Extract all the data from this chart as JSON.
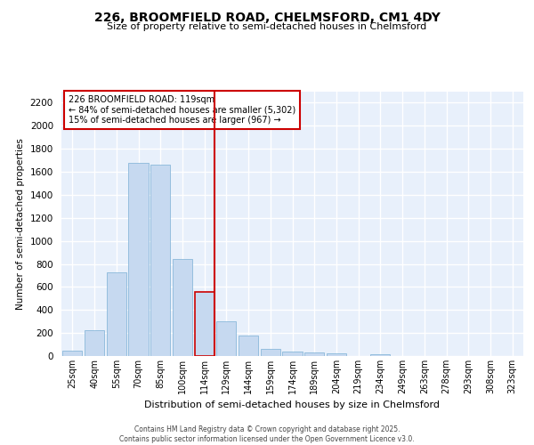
{
  "title_line1": "226, BROOMFIELD ROAD, CHELMSFORD, CM1 4DY",
  "title_line2": "Size of property relative to semi-detached houses in Chelmsford",
  "xlabel": "Distribution of semi-detached houses by size in Chelmsford",
  "ylabel": "Number of semi-detached properties",
  "bar_labels": [
    "25sqm",
    "40sqm",
    "55sqm",
    "70sqm",
    "85sqm",
    "100sqm",
    "114sqm",
    "129sqm",
    "144sqm",
    "159sqm",
    "174sqm",
    "189sqm",
    "204sqm",
    "219sqm",
    "234sqm",
    "249sqm",
    "263sqm",
    "278sqm",
    "293sqm",
    "308sqm",
    "323sqm"
  ],
  "bar_values": [
    50,
    225,
    725,
    1675,
    1660,
    845,
    560,
    300,
    180,
    65,
    42,
    30,
    22,
    0,
    18,
    0,
    0,
    0,
    0,
    0,
    0
  ],
  "bar_fill": "#c6d9f0",
  "bar_edge": "#7bafd4",
  "highlight_index": 6,
  "highlight_edge": "#cc0000",
  "vline_color": "#cc0000",
  "annotation_title": "226 BROOMFIELD ROAD: 119sqm",
  "annotation_line1": "← 84% of semi-detached houses are smaller (5,302)",
  "annotation_line2": "15% of semi-detached houses are larger (967) →",
  "ylim": [
    0,
    2300
  ],
  "yticks": [
    0,
    200,
    400,
    600,
    800,
    1000,
    1200,
    1400,
    1600,
    1800,
    2000,
    2200
  ],
  "bg_color": "#e8f0fb",
  "grid_color": "#ffffff",
  "fig_bg": "#ffffff",
  "footer_line1": "Contains HM Land Registry data © Crown copyright and database right 2025.",
  "footer_line2": "Contains public sector information licensed under the Open Government Licence v3.0."
}
